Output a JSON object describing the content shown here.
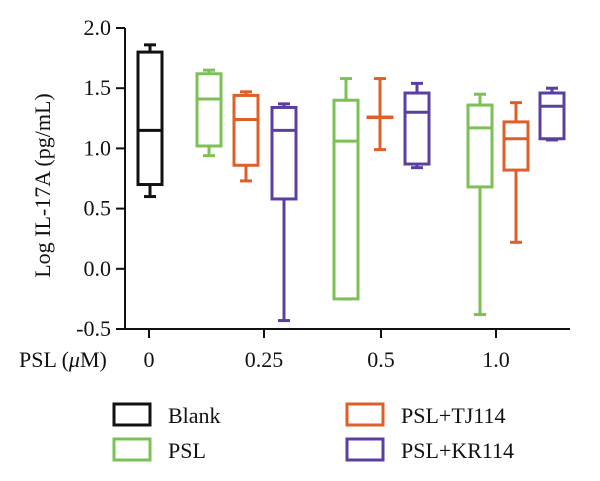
{
  "chart_data": {
    "type": "box",
    "ylabel": "Log IL-17A (pg/mL)",
    "ylim": [
      -0.5,
      2.0
    ],
    "y_ticks": [
      "2.0",
      "1.5",
      "1.0",
      "0.5",
      "0.0",
      "-0.5"
    ],
    "xlabel": "PSL (μM)",
    "x_title_main": "PSL (",
    "x_title_unit": "μ",
    "x_title_tail": "M)",
    "categories": [
      "0",
      "0.25",
      "0.5",
      "1.0"
    ],
    "series": [
      {
        "name": "Blank",
        "color": "#111111",
        "boxes": [
          {
            "group": "0",
            "min": 0.6,
            "q1": 0.7,
            "median": 1.15,
            "q3": 1.8,
            "max": 1.86
          }
        ]
      },
      {
        "name": "PSL",
        "color": "#7dc156",
        "boxes": [
          {
            "group": "0.25",
            "min": 0.94,
            "q1": 1.02,
            "median": 1.41,
            "q3": 1.62,
            "max": 1.65
          },
          {
            "group": "0.5",
            "min": -0.25,
            "q1": -0.25,
            "median": 1.06,
            "q3": 1.4,
            "max": 1.58
          },
          {
            "group": "1.0",
            "min": -0.38,
            "q1": 0.68,
            "median": 1.17,
            "q3": 1.36,
            "max": 1.45
          }
        ]
      },
      {
        "name": "PSL+TJ114",
        "color": "#df5f2a",
        "boxes": [
          {
            "group": "0.25",
            "min": 0.73,
            "q1": 0.86,
            "median": 1.24,
            "q3": 1.44,
            "max": 1.47
          },
          {
            "group": "0.5",
            "min": 0.99,
            "q1": 1.26,
            "median": 1.26,
            "q3": 1.26,
            "max": 1.58
          },
          {
            "group": "1.0",
            "min": 0.22,
            "q1": 0.82,
            "median": 1.08,
            "q3": 1.22,
            "max": 1.38
          }
        ]
      },
      {
        "name": "PSL+KR114",
        "color": "#5b3fa0",
        "boxes": [
          {
            "group": "0.25",
            "min": -0.43,
            "q1": 0.58,
            "median": 1.15,
            "q3": 1.34,
            "max": 1.37
          },
          {
            "group": "0.5",
            "min": 0.84,
            "q1": 0.87,
            "median": 1.3,
            "q3": 1.46,
            "max": 1.54
          },
          {
            "group": "1.0",
            "min": 1.07,
            "q1": 1.08,
            "median": 1.35,
            "q3": 1.46,
            "max": 1.5
          }
        ]
      }
    ],
    "legend": {
      "position": "bottom",
      "entries": [
        "Blank",
        "PSL",
        "PSL+TJ114",
        "PSL+KR114"
      ]
    },
    "grid": false
  }
}
